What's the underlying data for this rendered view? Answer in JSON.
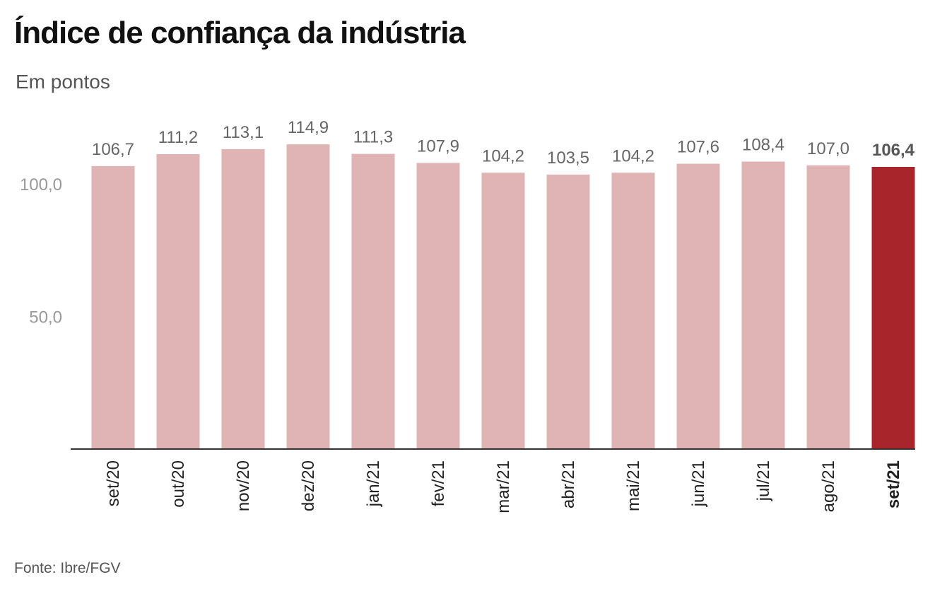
{
  "title": "Índice de confiança da indústria",
  "subtitle": "Em pontos",
  "source": "Fonte: Ibre/FGV",
  "colors": {
    "bar": "#e0b4b4",
    "highlight": "#a8262b",
    "axis": "#333333",
    "value_label": "#666666",
    "highlight_label": "#555555",
    "tick_label": "#999999",
    "category_label": "#222222"
  },
  "chart_data": {
    "type": "bar",
    "categories": [
      "set/20",
      "out/20",
      "nov/20",
      "dez/20",
      "jan/21",
      "fev/21",
      "mar/21",
      "abr/21",
      "mai/21",
      "jun/21",
      "jul/21",
      "ago/21",
      "set/21"
    ],
    "values": [
      106.7,
      111.2,
      113.1,
      114.9,
      111.3,
      107.9,
      104.2,
      103.5,
      104.2,
      107.6,
      108.4,
      107.0,
      106.4
    ],
    "value_labels": [
      "106,7",
      "111,2",
      "113,1",
      "114,9",
      "111,3",
      "107,9",
      "104,2",
      "103,5",
      "104,2",
      "107,6",
      "108,4",
      "107,0",
      "106,4"
    ],
    "highlight_index": 12,
    "yticks": [
      {
        "value": 50,
        "label": "50,0"
      },
      {
        "value": 100,
        "label": "100,0"
      }
    ],
    "ylim": [
      0,
      120
    ],
    "grid": false,
    "legend": "none"
  }
}
